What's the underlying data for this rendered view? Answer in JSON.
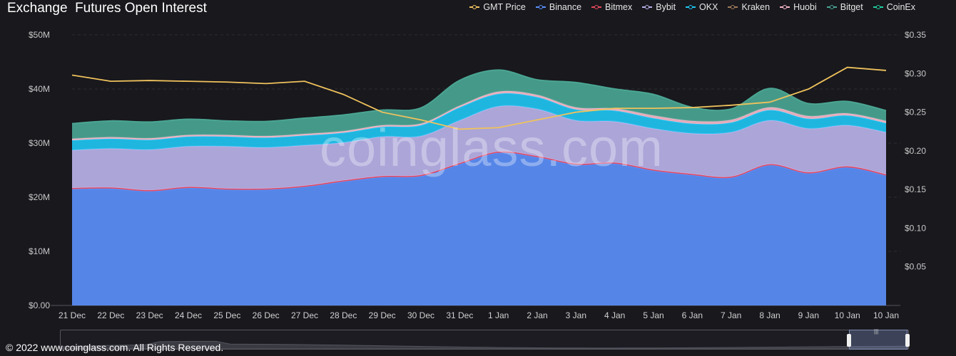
{
  "header": {
    "title": "Exchange  Futures Open Interest"
  },
  "legend": [
    {
      "label": "GMT Price",
      "color": "#f0c25c"
    },
    {
      "label": "Binance",
      "color": "#5b8ff9"
    },
    {
      "label": "Bitmex",
      "color": "#e8485b"
    },
    {
      "label": "Bybit",
      "color": "#b9b2e8"
    },
    {
      "label": "OKX",
      "color": "#1fc4f0"
    },
    {
      "label": "Kraken",
      "color": "#a07a5a"
    },
    {
      "label": "Huobi",
      "color": "#f4b6c6"
    },
    {
      "label": "Bitget",
      "color": "#4aa592"
    },
    {
      "label": "CoinEx",
      "color": "#1fcf9f"
    }
  ],
  "watermark": "coinglass.com",
  "footer": {
    "copyright": "© 2022 www.coinglass.com. All Rights Reserved."
  },
  "chart_data": {
    "type": "area",
    "stacked": true,
    "categories": [
      "21 Dec",
      "22 Dec",
      "23 Dec",
      "24 Dec",
      "25 Dec",
      "26 Dec",
      "27 Dec",
      "28 Dec",
      "29 Dec",
      "30 Dec",
      "31 Dec",
      "1 Jan",
      "2 Jan",
      "3 Jan",
      "4 Jan",
      "5 Jan",
      "6 Jan",
      "7 Jan",
      "8 Jan",
      "9 Jan",
      "10 Jan",
      "10 Jan"
    ],
    "y_left": {
      "ylim": [
        0,
        50000000
      ],
      "ticks": [
        "$0.00",
        "$10M",
        "$20M",
        "$30M",
        "$40M",
        "$50M"
      ]
    },
    "y_right": {
      "ylim": [
        0,
        0.35
      ],
      "ticks": [
        "$0.05",
        "$0.10",
        "$0.15",
        "$0.20",
        "$0.25",
        "$0.30",
        "$0.35"
      ]
    },
    "grid": true,
    "legend_position": "top-right",
    "series": [
      {
        "name": "Binance",
        "color": "#5b8ff9",
        "values": [
          21.5,
          21.6,
          21.1,
          21.7,
          21.4,
          21.4,
          21.9,
          22.9,
          23.7,
          23.9,
          26.1,
          28.2,
          27.4,
          26.0,
          26.2,
          24.9,
          24.1,
          23.6,
          25.9,
          24.4,
          25.5,
          24.0
        ]
      },
      {
        "name": "Bitmex",
        "color": "#e8485b",
        "values": [
          0.2,
          0.2,
          0.2,
          0.2,
          0.2,
          0.2,
          0.2,
          0.2,
          0.2,
          0.2,
          0.2,
          0.2,
          0.2,
          0.2,
          0.2,
          0.2,
          0.2,
          0.2,
          0.2,
          0.2,
          0.2,
          0.2
        ]
      },
      {
        "name": "Bybit",
        "color": "#b9b2e8",
        "values": [
          7.0,
          7.2,
          7.5,
          7.5,
          7.8,
          7.6,
          7.5,
          7.0,
          7.3,
          7.2,
          7.9,
          8.4,
          8.7,
          8.0,
          7.6,
          7.6,
          7.5,
          8.2,
          8.1,
          8.1,
          7.6,
          7.8
        ]
      },
      {
        "name": "OKX",
        "color": "#1fc4f0",
        "values": [
          1.8,
          1.8,
          1.8,
          1.8,
          1.8,
          1.8,
          1.8,
          1.8,
          1.8,
          2.0,
          2.4,
          2.3,
          2.2,
          2.0,
          2.0,
          1.9,
          1.8,
          1.8,
          1.9,
          1.8,
          1.8,
          1.7
        ]
      },
      {
        "name": "Kraken",
        "color": "#a07a5a",
        "values": [
          0,
          0,
          0,
          0,
          0,
          0,
          0,
          0,
          0,
          0,
          0,
          0,
          0,
          0,
          0,
          0,
          0,
          0,
          0,
          0,
          0,
          0
        ]
      },
      {
        "name": "Huobi",
        "color": "#f4b6c6",
        "values": [
          0.3,
          0.3,
          0.3,
          0.3,
          0.3,
          0.3,
          0.3,
          0.3,
          0.3,
          0.3,
          0.3,
          0.4,
          0.4,
          0.4,
          0.4,
          0.5,
          0.5,
          0.5,
          0.5,
          0.5,
          0.4,
          0.4
        ]
      },
      {
        "name": "Bitget",
        "color": "#4aa592",
        "values": [
          2.8,
          3.0,
          3.0,
          2.9,
          2.6,
          2.7,
          2.9,
          3.0,
          2.8,
          2.9,
          4.7,
          4.0,
          2.8,
          4.6,
          3.6,
          3.9,
          2.5,
          2.0,
          3.5,
          2.3,
          2.2,
          1.9
        ]
      },
      {
        "name": "CoinEx",
        "color": "#1fcf9f",
        "values": [
          0,
          0,
          0,
          0,
          0,
          0,
          0,
          0,
          0,
          0,
          0,
          0,
          0,
          0,
          0,
          0,
          0,
          0,
          0,
          0,
          0,
          0
        ]
      }
    ],
    "price_series": {
      "name": "GMT Price",
      "color": "#f0c25c",
      "axis": "right",
      "values": [
        0.298,
        0.29,
        0.291,
        0.29,
        0.289,
        0.287,
        0.29,
        0.273,
        0.25,
        0.24,
        0.228,
        0.23,
        0.24,
        0.25,
        0.255,
        0.255,
        0.256,
        0.259,
        0.263,
        0.28,
        0.308,
        0.304
      ]
    },
    "value_unit": "M USD"
  }
}
